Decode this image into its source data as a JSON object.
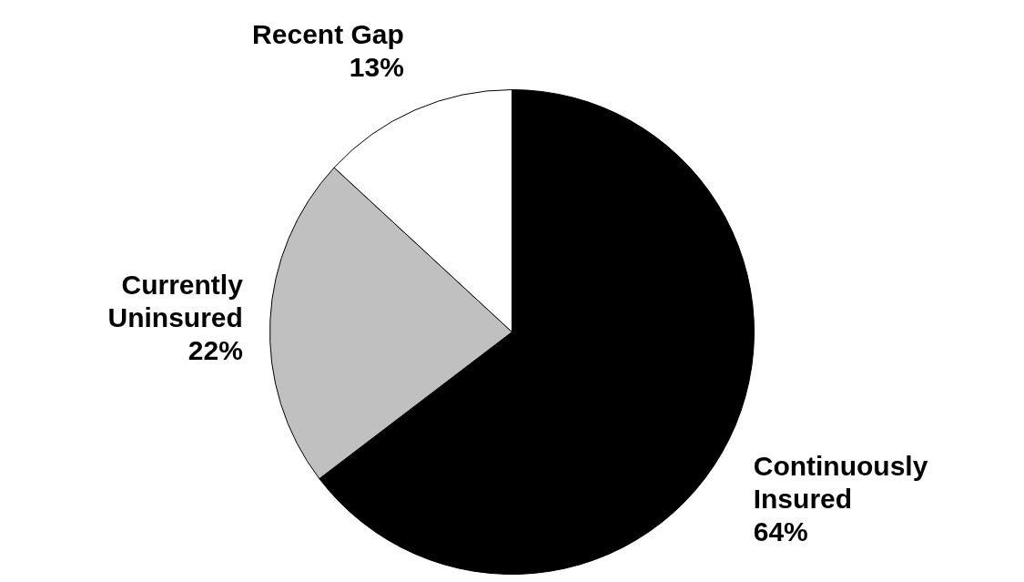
{
  "chart_data": {
    "type": "pie",
    "categories": [
      "Continuously Insured",
      "Currently Uninsured",
      "Recent Gap"
    ],
    "values": [
      64,
      22,
      13
    ],
    "colors": [
      "#000000",
      "#c0c0c0",
      "#ffffff"
    ],
    "value_labels": [
      "64%",
      "22%",
      "13%"
    ],
    "legend": false
  }
}
